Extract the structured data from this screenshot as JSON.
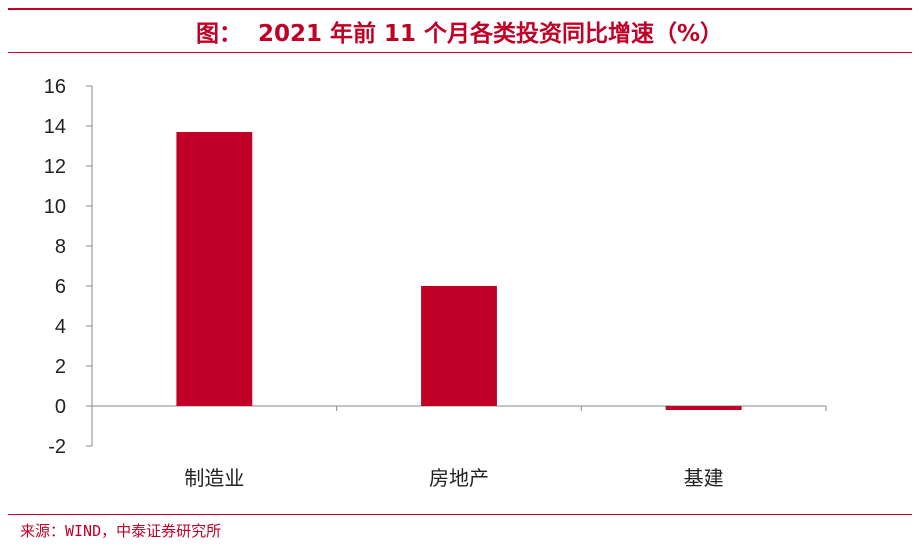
{
  "header": {
    "figure_label": "图：",
    "title": "2021 年前 11 个月各类投资同比增速（%）"
  },
  "chart_data": {
    "type": "bar",
    "categories": [
      "制造业",
      "房地产",
      "基建"
    ],
    "values": [
      13.7,
      6.0,
      -0.2
    ],
    "ylim": [
      -2,
      16
    ],
    "yticks": [
      "16",
      "14",
      "12",
      "10",
      "8",
      "6",
      "4",
      "2",
      "0",
      "-2"
    ],
    "grid": false,
    "legend": "none",
    "bar_color": "#c00026"
  },
  "footer": {
    "source": "来源：WIND，中泰证券研究所"
  },
  "colors": {
    "accent": "#c00026"
  }
}
